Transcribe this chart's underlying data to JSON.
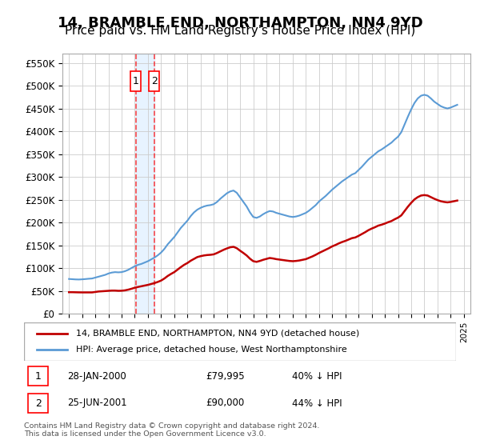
{
  "title": "14, BRAMBLE END, NORTHAMPTON, NN4 9YD",
  "subtitle": "Price paid vs. HM Land Registry's House Price Index (HPI)",
  "title_fontsize": 13,
  "subtitle_fontsize": 11,
  "ylabel_ticks": [
    "£0",
    "£50K",
    "£100K",
    "£150K",
    "£200K",
    "£250K",
    "£300K",
    "£350K",
    "£400K",
    "£450K",
    "£500K",
    "£550K"
  ],
  "ytick_vals": [
    0,
    50000,
    100000,
    150000,
    200000,
    250000,
    300000,
    350000,
    400000,
    450000,
    500000,
    550000
  ],
  "ylim": [
    0,
    570000
  ],
  "xlim_start": 1994.5,
  "xlim_end": 2025.5,
  "blue_color": "#5b9bd5",
  "red_color": "#c00000",
  "vline_color": "#ff0000",
  "vline_alpha": 0.7,
  "purchase1_x": 2000.07,
  "purchase1_y": 79995,
  "purchase2_x": 2001.48,
  "purchase2_y": 90000,
  "purchase1_label": "28-JAN-2000",
  "purchase2_label": "25-JUN-2001",
  "purchase1_price": "£79,995",
  "purchase2_price": "£90,000",
  "purchase1_hpi": "40% ↓ HPI",
  "purchase2_hpi": "44% ↓ HPI",
  "legend_label1": "14, BRAMBLE END, NORTHAMPTON, NN4 9YD (detached house)",
  "legend_label2": "HPI: Average price, detached house, West Northamptonshire",
  "footer": "Contains HM Land Registry data © Crown copyright and database right 2024.\nThis data is licensed under the Open Government Licence v3.0.",
  "hpi_years": [
    1995,
    1995.25,
    1995.5,
    1995.75,
    1996,
    1996.25,
    1996.5,
    1996.75,
    1997,
    1997.25,
    1997.5,
    1997.75,
    1998,
    1998.25,
    1998.5,
    1998.75,
    1999,
    1999.25,
    1999.5,
    1999.75,
    2000,
    2000.25,
    2000.5,
    2000.75,
    2001,
    2001.25,
    2001.5,
    2001.75,
    2002,
    2002.25,
    2002.5,
    2002.75,
    2003,
    2003.25,
    2003.5,
    2003.75,
    2004,
    2004.25,
    2004.5,
    2004.75,
    2005,
    2005.25,
    2005.5,
    2005.75,
    2006,
    2006.25,
    2006.5,
    2006.75,
    2007,
    2007.25,
    2007.5,
    2007.75,
    2008,
    2008.25,
    2008.5,
    2008.75,
    2009,
    2009.25,
    2009.5,
    2009.75,
    2010,
    2010.25,
    2010.5,
    2010.75,
    2011,
    2011.25,
    2011.5,
    2011.75,
    2012,
    2012.25,
    2012.5,
    2012.75,
    2013,
    2013.25,
    2013.5,
    2013.75,
    2014,
    2014.25,
    2014.5,
    2014.75,
    2015,
    2015.25,
    2015.5,
    2015.75,
    2016,
    2016.25,
    2016.5,
    2016.75,
    2017,
    2017.25,
    2017.5,
    2017.75,
    2018,
    2018.25,
    2018.5,
    2018.75,
    2019,
    2019.25,
    2019.5,
    2019.75,
    2020,
    2020.25,
    2020.5,
    2020.75,
    2021,
    2021.25,
    2021.5,
    2021.75,
    2022,
    2022.25,
    2022.5,
    2022.75,
    2023,
    2023.25,
    2023.5,
    2023.75,
    2024,
    2024.25,
    2024.5
  ],
  "hpi_values": [
    76000,
    75500,
    75000,
    74800,
    75200,
    75800,
    76500,
    77000,
    79000,
    81000,
    83000,
    85000,
    88000,
    90000,
    91000,
    90500,
    91000,
    93000,
    96000,
    100000,
    104000,
    107000,
    109000,
    112000,
    115000,
    119000,
    123000,
    128000,
    134000,
    142000,
    152000,
    160000,
    168000,
    178000,
    188000,
    196000,
    204000,
    214000,
    222000,
    228000,
    232000,
    235000,
    237000,
    238000,
    240000,
    245000,
    252000,
    258000,
    264000,
    268000,
    270000,
    265000,
    255000,
    245000,
    235000,
    222000,
    212000,
    210000,
    213000,
    218000,
    222000,
    225000,
    224000,
    221000,
    219000,
    217000,
    215000,
    213000,
    212000,
    213000,
    215000,
    218000,
    221000,
    226000,
    232000,
    238000,
    246000,
    252000,
    258000,
    265000,
    272000,
    278000,
    284000,
    290000,
    295000,
    300000,
    305000,
    308000,
    315000,
    322000,
    330000,
    338000,
    344000,
    350000,
    356000,
    360000,
    365000,
    370000,
    375000,
    382000,
    388000,
    398000,
    415000,
    432000,
    448000,
    462000,
    472000,
    478000,
    480000,
    478000,
    472000,
    465000,
    460000,
    455000,
    452000,
    450000,
    452000,
    455000,
    458000
  ],
  "red_years": [
    1995,
    1995.25,
    1995.5,
    1995.75,
    1996,
    1996.25,
    1996.5,
    1996.75,
    1997,
    1997.25,
    1997.5,
    1997.75,
    1998,
    1998.25,
    1998.5,
    1998.75,
    1999,
    1999.25,
    1999.5,
    1999.75,
    2000,
    2000.25,
    2000.5,
    2000.75,
    2001,
    2001.25,
    2001.5,
    2001.75,
    2002,
    2002.25,
    2002.5,
    2002.75,
    2003,
    2003.25,
    2003.5,
    2003.75,
    2004,
    2004.25,
    2004.5,
    2004.75,
    2005,
    2005.25,
    2005.5,
    2005.75,
    2006,
    2006.25,
    2006.5,
    2006.75,
    2007,
    2007.25,
    2007.5,
    2007.75,
    2008,
    2008.25,
    2008.5,
    2008.75,
    2009,
    2009.25,
    2009.5,
    2009.75,
    2010,
    2010.25,
    2010.5,
    2010.75,
    2011,
    2011.25,
    2011.5,
    2011.75,
    2012,
    2012.25,
    2012.5,
    2012.75,
    2013,
    2013.25,
    2013.5,
    2013.75,
    2014,
    2014.25,
    2014.5,
    2014.75,
    2015,
    2015.25,
    2015.5,
    2015.75,
    2016,
    2016.25,
    2016.5,
    2016.75,
    2017,
    2017.25,
    2017.5,
    2017.75,
    2018,
    2018.25,
    2018.5,
    2018.75,
    2019,
    2019.25,
    2019.5,
    2019.75,
    2020,
    2020.25,
    2020.5,
    2020.75,
    2021,
    2021.25,
    2021.5,
    2021.75,
    2022,
    2022.25,
    2022.5,
    2022.75,
    2023,
    2023.25,
    2023.5,
    2023.75,
    2024,
    2024.25,
    2024.5
  ],
  "red_values": [
    47000,
    47000,
    46800,
    46600,
    46500,
    46500,
    46500,
    46500,
    47500,
    48500,
    49000,
    49500,
    50000,
    50500,
    50500,
    50000,
    50200,
    51000,
    52500,
    54500,
    56800,
    58500,
    60000,
    61500,
    63000,
    65000,
    67000,
    69500,
    72500,
    77000,
    82500,
    87000,
    91000,
    96500,
    102000,
    107000,
    111000,
    116000,
    120000,
    124000,
    126000,
    127500,
    128500,
    129000,
    130000,
    133000,
    136500,
    140000,
    143000,
    145500,
    146500,
    143500,
    138000,
    133000,
    127500,
    120500,
    115000,
    113500,
    115500,
    118000,
    120000,
    122000,
    121000,
    119500,
    118500,
    117500,
    116500,
    115500,
    115000,
    115500,
    116500,
    118000,
    119500,
    122500,
    125500,
    129000,
    133000,
    136500,
    140000,
    143500,
    147500,
    150500,
    154000,
    157000,
    159500,
    162500,
    165500,
    167000,
    170500,
    174500,
    178500,
    183000,
    186500,
    189500,
    193000,
    195000,
    197500,
    200500,
    203000,
    207000,
    210500,
    215500,
    225000,
    234500,
    243000,
    250500,
    255500,
    259000,
    260000,
    259000,
    255500,
    252000,
    249000,
    246500,
    245000,
    244000,
    245000,
    246500,
    248000
  ]
}
